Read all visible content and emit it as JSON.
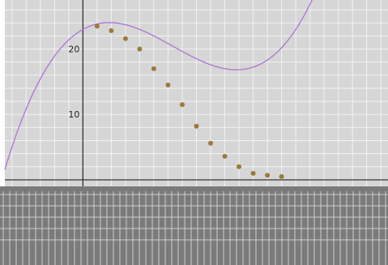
{
  "chart_data": {
    "type": "scatter",
    "xlim": [
      -5.5,
      21.5
    ],
    "ylim": [
      -1,
      27.5
    ],
    "y_ticks": [
      {
        "value": 10,
        "label": "10"
      },
      {
        "value": 20,
        "label": "20"
      }
    ],
    "x_axis_at": 0,
    "y_axis_at": 0,
    "grid": true,
    "colors": {
      "background": "#d6d6d6",
      "grid": "#f2f2f2",
      "axis": "#222222",
      "curve": "#b07ad6",
      "points": "#9c7a3c",
      "bottom_strip": "#7a7a7a"
    },
    "curve": {
      "type": "polynomial",
      "coefficients": [
        23,
        1.2,
        -0.38,
        0.02
      ]
    },
    "points": {
      "x": [
        1,
        2,
        3,
        4,
        5,
        6,
        7,
        8,
        9,
        10,
        11,
        12,
        13,
        14
      ],
      "y": [
        23.5,
        22.8,
        21.6,
        20.0,
        17.0,
        14.5,
        11.5,
        8.2,
        5.6,
        3.6,
        2.0,
        1.0,
        0.7,
        0.5
      ]
    }
  }
}
